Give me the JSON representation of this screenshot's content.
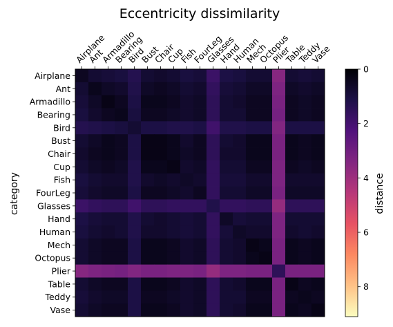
{
  "chart_data": {
    "type": "heatmap",
    "title": "Eccentricity dissimilarity",
    "xlabel": "",
    "ylabel": "category",
    "categories": [
      "Airplane",
      "Ant",
      "Armadillo",
      "Bearing",
      "Bird",
      "Bust",
      "Chair",
      "Cup",
      "Fish",
      "FourLeg",
      "Glasses",
      "Hand",
      "Human",
      "Mech",
      "Octopus",
      "Plier",
      "Table",
      "Teddy",
      "Vase"
    ],
    "value_matrix": [
      [
        0.5,
        0.8,
        0.9,
        1.0,
        1.3,
        0.8,
        0.7,
        0.8,
        1.0,
        0.9,
        1.8,
        1.1,
        1.0,
        0.8,
        0.8,
        3.5,
        0.8,
        0.9,
        0.8
      ],
      [
        0.8,
        0.4,
        0.6,
        0.7,
        1.2,
        0.6,
        0.5,
        0.6,
        0.8,
        0.7,
        1.6,
        0.9,
        0.8,
        0.6,
        0.6,
        3.3,
        0.6,
        0.7,
        0.6
      ],
      [
        0.9,
        0.6,
        0.3,
        0.5,
        1.1,
        0.4,
        0.4,
        0.5,
        0.7,
        0.6,
        1.5,
        0.8,
        0.7,
        0.5,
        0.5,
        3.2,
        0.5,
        0.6,
        0.5
      ],
      [
        1.0,
        0.7,
        0.5,
        0.4,
        1.0,
        0.5,
        0.5,
        0.6,
        0.7,
        0.6,
        1.5,
        0.8,
        0.8,
        0.5,
        0.5,
        3.1,
        0.5,
        0.6,
        0.5
      ],
      [
        1.3,
        1.2,
        1.1,
        1.0,
        0.8,
        1.1,
        1.1,
        1.2,
        1.2,
        1.1,
        1.9,
        1.2,
        1.2,
        1.1,
        1.1,
        3.4,
        1.1,
        1.1,
        1.1
      ],
      [
        0.8,
        0.6,
        0.4,
        0.5,
        1.1,
        0.3,
        0.3,
        0.4,
        0.7,
        0.5,
        1.5,
        0.8,
        0.7,
        0.4,
        0.4,
        3.2,
        0.4,
        0.5,
        0.4
      ],
      [
        0.7,
        0.5,
        0.4,
        0.5,
        1.1,
        0.3,
        0.3,
        0.4,
        0.6,
        0.5,
        1.5,
        0.7,
        0.7,
        0.4,
        0.4,
        3.2,
        0.4,
        0.5,
        0.4
      ],
      [
        0.8,
        0.6,
        0.5,
        0.6,
        1.2,
        0.4,
        0.4,
        0.3,
        0.7,
        0.6,
        1.6,
        0.8,
        0.8,
        0.5,
        0.5,
        3.3,
        0.5,
        0.6,
        0.5
      ],
      [
        1.0,
        0.8,
        0.7,
        0.7,
        1.2,
        0.7,
        0.6,
        0.7,
        0.6,
        0.7,
        1.6,
        0.9,
        0.9,
        0.7,
        0.7,
        3.3,
        0.7,
        0.7,
        0.7
      ],
      [
        0.9,
        0.7,
        0.6,
        0.6,
        1.1,
        0.5,
        0.5,
        0.6,
        0.7,
        0.5,
        1.6,
        0.8,
        0.8,
        0.6,
        0.6,
        3.2,
        0.6,
        0.6,
        0.6
      ],
      [
        1.8,
        1.6,
        1.5,
        1.5,
        1.9,
        1.5,
        1.5,
        1.6,
        1.6,
        1.6,
        1.2,
        1.6,
        1.6,
        1.5,
        1.5,
        3.8,
        1.5,
        1.5,
        1.5
      ],
      [
        1.1,
        0.9,
        0.8,
        0.8,
        1.2,
        0.8,
        0.7,
        0.8,
        0.9,
        0.8,
        1.6,
        0.6,
        0.9,
        0.8,
        0.8,
        3.3,
        0.8,
        0.8,
        0.8
      ],
      [
        1.0,
        0.8,
        0.7,
        0.8,
        1.2,
        0.7,
        0.7,
        0.8,
        0.9,
        0.8,
        1.6,
        0.9,
        0.6,
        0.7,
        0.7,
        3.3,
        0.7,
        0.8,
        0.7
      ],
      [
        0.8,
        0.6,
        0.5,
        0.5,
        1.1,
        0.4,
        0.4,
        0.5,
        0.7,
        0.6,
        1.5,
        0.8,
        0.7,
        0.3,
        0.4,
        3.2,
        0.4,
        0.5,
        0.4
      ],
      [
        0.8,
        0.6,
        0.5,
        0.5,
        1.1,
        0.4,
        0.4,
        0.5,
        0.7,
        0.6,
        1.5,
        0.8,
        0.7,
        0.4,
        0.3,
        3.2,
        0.4,
        0.5,
        0.4
      ],
      [
        3.5,
        3.3,
        3.2,
        3.1,
        3.4,
        3.2,
        3.2,
        3.3,
        3.3,
        3.2,
        3.8,
        3.3,
        3.3,
        3.2,
        3.2,
        1.5,
        3.2,
        3.2,
        3.2
      ],
      [
        0.8,
        0.6,
        0.5,
        0.5,
        1.1,
        0.4,
        0.4,
        0.5,
        0.7,
        0.6,
        1.5,
        0.8,
        0.7,
        0.4,
        0.4,
        3.2,
        0.3,
        0.5,
        0.4
      ],
      [
        0.9,
        0.7,
        0.6,
        0.6,
        1.1,
        0.5,
        0.5,
        0.6,
        0.7,
        0.6,
        1.5,
        0.8,
        0.8,
        0.5,
        0.5,
        3.2,
        0.5,
        0.4,
        0.5
      ],
      [
        0.8,
        0.6,
        0.5,
        0.5,
        1.1,
        0.4,
        0.4,
        0.5,
        0.7,
        0.6,
        1.5,
        0.8,
        0.7,
        0.4,
        0.4,
        3.2,
        0.4,
        0.5,
        0.3
      ]
    ],
    "colorbar": {
      "label": "distance",
      "range": [
        0,
        9.1
      ],
      "ticks": [
        0,
        2,
        4,
        6,
        8
      ],
      "reversed": true,
      "colormap": "magma",
      "colormap_stops": [
        "#000004",
        "#1d1147",
        "#51127c",
        "#822681",
        "#b73779",
        "#e75263",
        "#fc8961",
        "#fec287",
        "#fcfdbf"
      ]
    },
    "x_tick_position": "top",
    "grid": false
  }
}
